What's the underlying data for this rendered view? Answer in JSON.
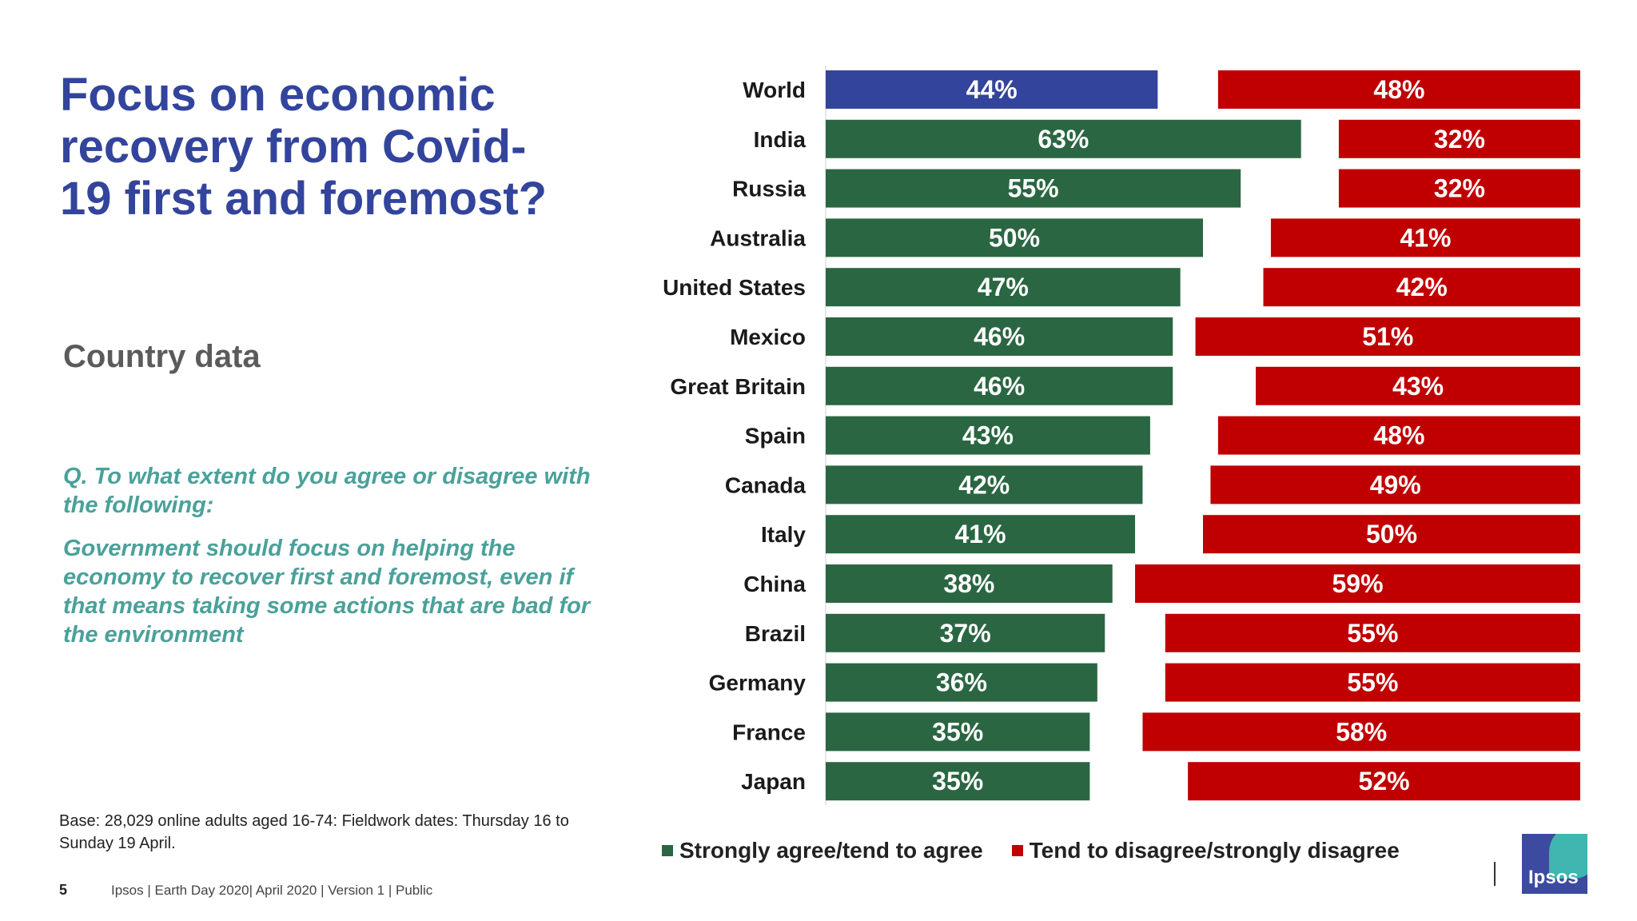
{
  "header": {
    "title": "Focus on economic recovery from Covid-19 first and foremost?",
    "subtitle": "Country data"
  },
  "question": {
    "prompt": "Q. To what extent do you agree or disagree with the following:",
    "statement": "Government should focus on helping the economy to recover first and foremost, even if that means taking some actions that are bad for the environment"
  },
  "footer": {
    "base_note": "Base: 28,029 online adults aged 16-74: Fieldwork dates: Thursday 16 to Sunday 19 April.",
    "page_number": "5",
    "source": "Ipsos | Earth Day 2020| April 2020 | Version 1 | Public"
  },
  "logo": {
    "text": "Ipsos"
  },
  "colors": {
    "agree": "#2a6642",
    "agree_world": "#33449c",
    "disagree": "#c00000"
  },
  "chart_data": {
    "type": "bar",
    "orientation": "horizontal",
    "stacking": "diverging",
    "categories": [
      "World",
      "India",
      "Russia",
      "Australia",
      "United States",
      "Mexico",
      "Great Britain",
      "Spain",
      "Canada",
      "Italy",
      "China",
      "Brazil",
      "Germany",
      "France",
      "Japan"
    ],
    "series": [
      {
        "name": "Strongly agree/tend to agree",
        "values": [
          44,
          63,
          55,
          50,
          47,
          46,
          46,
          43,
          42,
          41,
          38,
          37,
          36,
          35,
          35
        ]
      },
      {
        "name": "Tend to disagree/strongly disagree",
        "values": [
          48,
          32,
          32,
          41,
          42,
          51,
          43,
          48,
          49,
          50,
          59,
          55,
          55,
          58,
          52
        ]
      }
    ],
    "value_suffix": "%",
    "xlim": [
      0,
      100
    ],
    "legend": "bottom",
    "grid": false
  }
}
